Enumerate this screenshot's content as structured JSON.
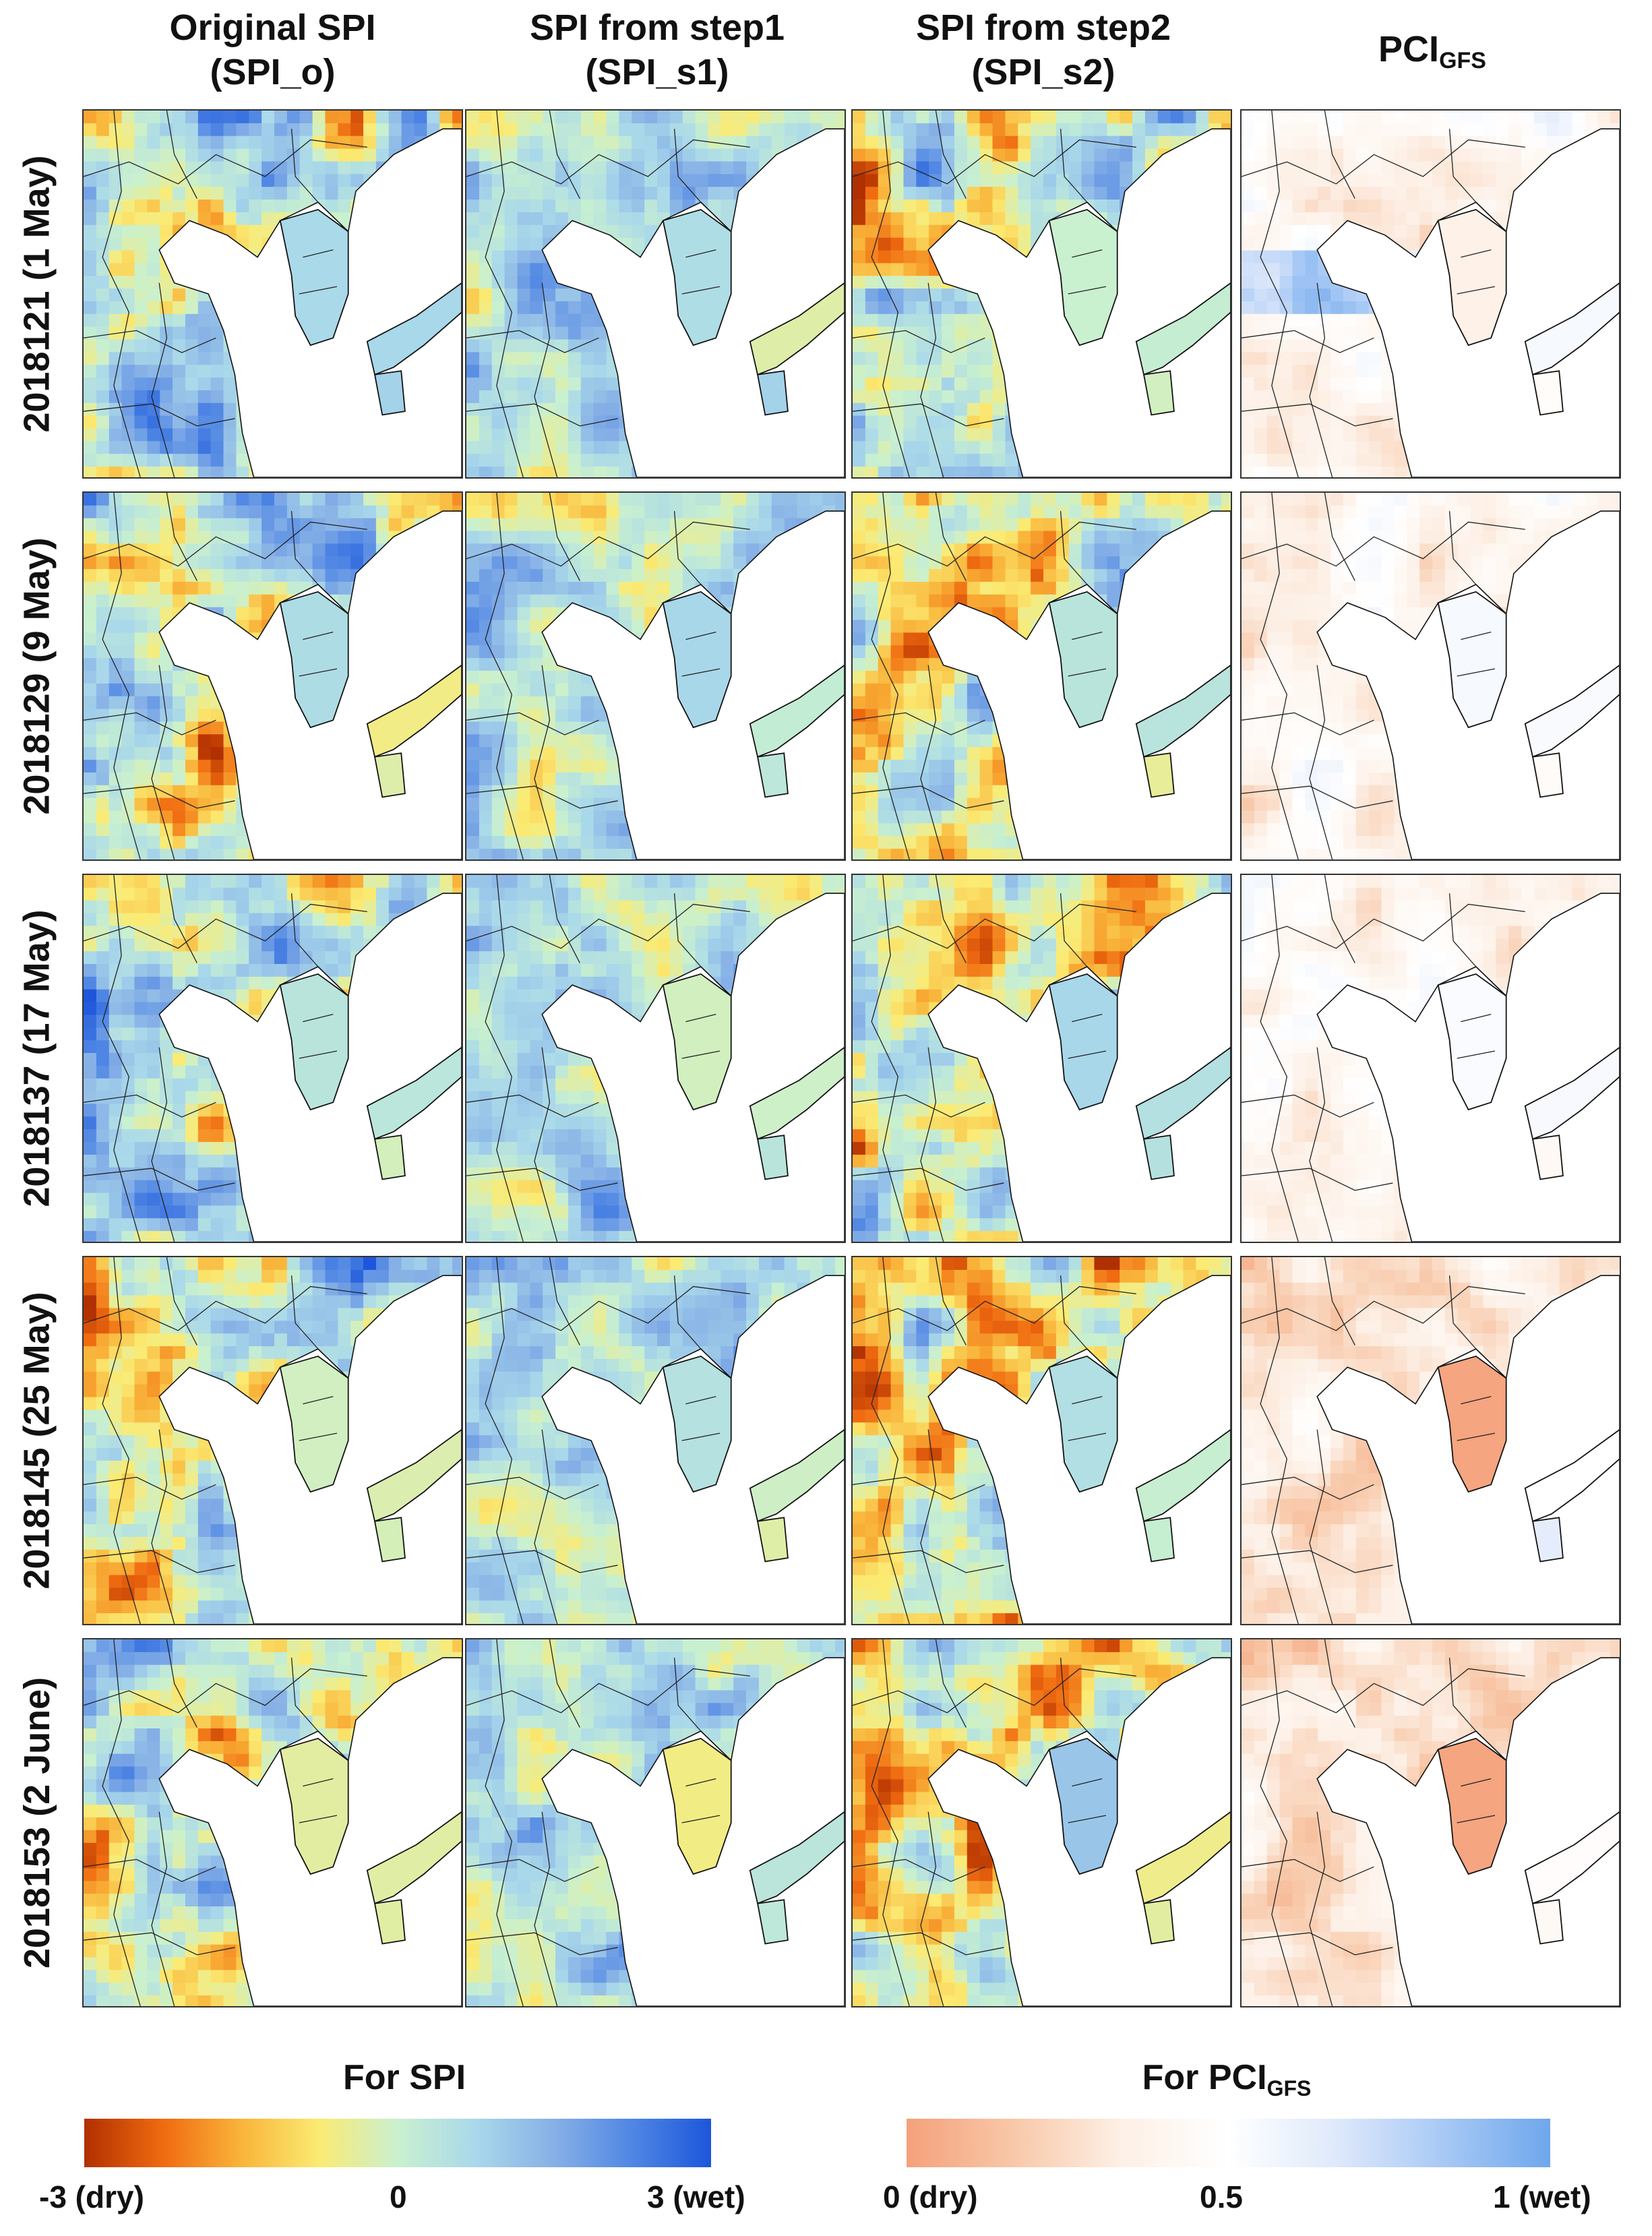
{
  "columns": [
    {
      "line1": "Original SPI",
      "line2": "(SPI_o)"
    },
    {
      "line1": "SPI from step1",
      "line2": "(SPI_s1)"
    },
    {
      "line1": "SPI from step2",
      "line2": "(SPI_s2)"
    },
    {
      "main": "PCI",
      "sub": "GFS"
    }
  ],
  "rows": [
    {
      "label": "2018121 (1 May)"
    },
    {
      "label": "2018129 (9 May)"
    },
    {
      "label": "2018137 (17 May)"
    },
    {
      "label": "2018145 (25 May)"
    },
    {
      "label": "2018153 (2 June)"
    }
  ],
  "legend_spi": {
    "title": "For SPI",
    "ticks": [
      "-3 (dry)",
      "0",
      "3 (wet)"
    ],
    "colors": [
      "#b03000",
      "#f06a10",
      "#f9b43a",
      "#fbeb73",
      "#c9f0cf",
      "#a9d8ea",
      "#86b0e6",
      "#4f86e4",
      "#1d56da"
    ]
  },
  "legend_pci": {
    "title_main": "For PCI",
    "title_sub": "GFS",
    "ticks": [
      "0 (dry)",
      "0.5",
      "1 (wet)"
    ],
    "colors": [
      "#f5a07b",
      "#f8c8a8",
      "#fdf0e6",
      "#ffffff",
      "#dfe9fb",
      "#a8c9f5",
      "#6fa7ec"
    ]
  }
}
